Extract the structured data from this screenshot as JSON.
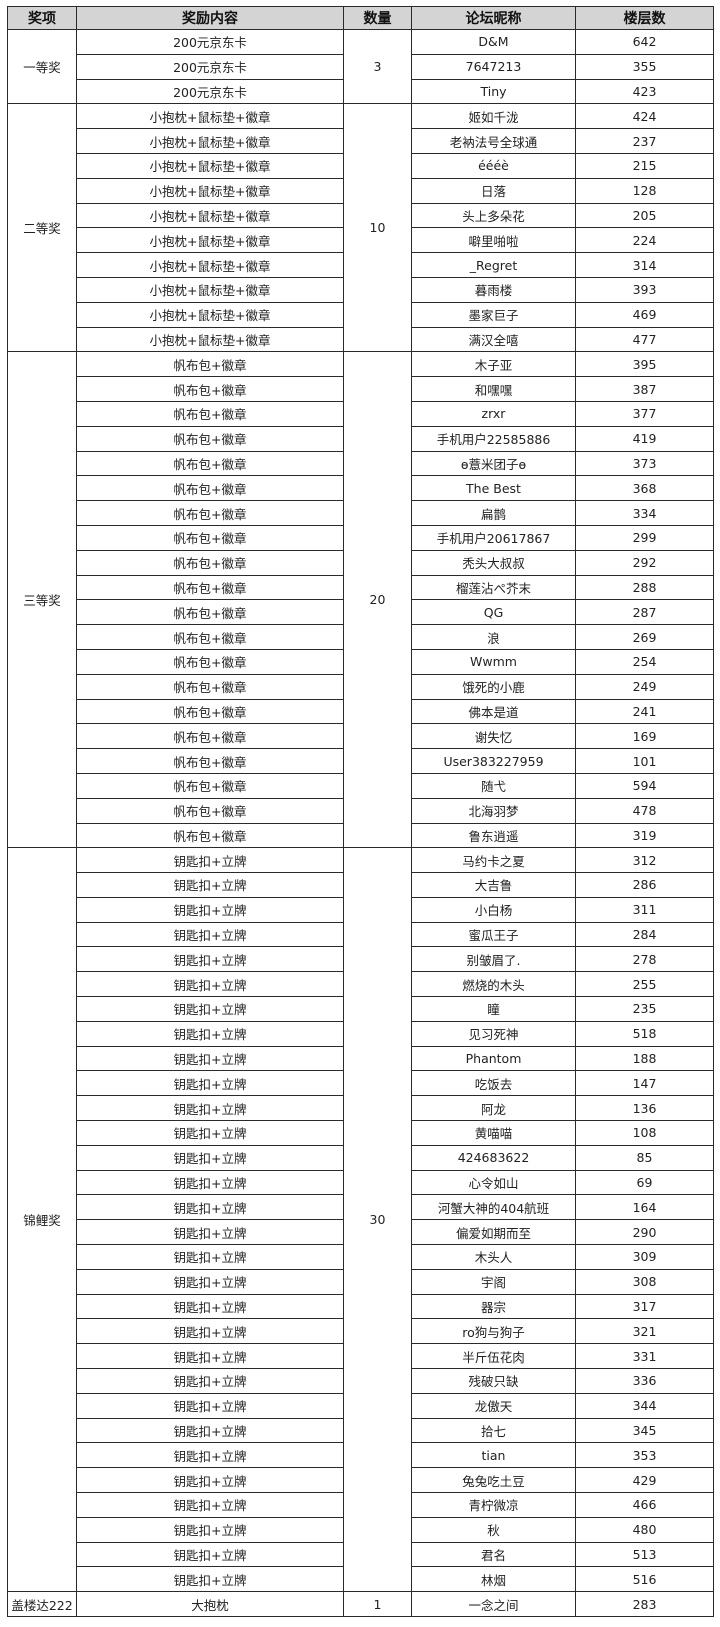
{
  "headers": [
    "奖项",
    "奖励内容",
    "数量",
    "论坛昵称",
    "楼层数"
  ],
  "colors": {
    "header_bg": "#d4d4d4",
    "border": "#2a2a2a"
  },
  "groups": [
    {
      "prize": "一等奖",
      "count": "3",
      "rows": [
        [
          "200元京东卡",
          "D&M",
          "642"
        ],
        [
          "200元京东卡",
          "7647213",
          "355"
        ],
        [
          "200元京东卡",
          "Tiny",
          "423"
        ]
      ]
    },
    {
      "prize": "二等奖",
      "count": "10",
      "rows": [
        [
          "小抱枕+鼠标垫+徽章",
          "姬如千泷",
          "424"
        ],
        [
          "小抱枕+鼠标垫+徽章",
          "老衲法号全球通",
          "237"
        ],
        [
          "小抱枕+鼠标垫+徽章",
          "éééè",
          "215"
        ],
        [
          "小抱枕+鼠标垫+徽章",
          "日落",
          "128"
        ],
        [
          "小抱枕+鼠标垫+徽章",
          "头上多朵花",
          "205"
        ],
        [
          "小抱枕+鼠标垫+徽章",
          "噼里啪啦",
          "224"
        ],
        [
          "小抱枕+鼠标垫+徽章",
          "_Regret",
          "314"
        ],
        [
          "小抱枕+鼠标垫+徽章",
          "暮雨楼",
          "393"
        ],
        [
          "小抱枕+鼠标垫+徽章",
          "墨家巨子",
          "469"
        ],
        [
          "小抱枕+鼠标垫+徽章",
          "满汉全嘻",
          "477"
        ]
      ]
    },
    {
      "prize": "三等奖",
      "count": "20",
      "rows": [
        [
          "帆布包+徽章",
          "木子亚",
          "395"
        ],
        [
          "帆布包+徽章",
          "和嘿嘿",
          "387"
        ],
        [
          "帆布包+徽章",
          "zrxr",
          "377"
        ],
        [
          "帆布包+徽章",
          "手机用户22585886",
          "419"
        ],
        [
          "帆布包+徽章",
          "ɵ薏米团子ɵ",
          "373"
        ],
        [
          "帆布包+徽章",
          "The Best",
          "368"
        ],
        [
          "帆布包+徽章",
          "扁鹊",
          "334"
        ],
        [
          "帆布包+徽章",
          "手机用户20617867",
          "299"
        ],
        [
          "帆布包+徽章",
          "秃头大叔叔",
          "292"
        ],
        [
          "帆布包+徽章",
          "榴莲沾ぺ芥末",
          "288"
        ],
        [
          "帆布包+徽章",
          "QG",
          "287"
        ],
        [
          "帆布包+徽章",
          "浪",
          "269"
        ],
        [
          "帆布包+徽章",
          "Wwmm",
          "254"
        ],
        [
          "帆布包+徽章",
          "饿死的小鹿",
          "249"
        ],
        [
          "帆布包+徽章",
          "佛本是道",
          "241"
        ],
        [
          "帆布包+徽章",
          "谢失忆",
          "169"
        ],
        [
          "帆布包+徽章",
          "User383227959",
          "101"
        ],
        [
          "帆布包+徽章",
          "随弋",
          "594"
        ],
        [
          "帆布包+徽章",
          "北海羽梦",
          "478"
        ],
        [
          "帆布包+徽章",
          "鲁东逍遥",
          "319"
        ]
      ]
    },
    {
      "prize": "锦鲤奖",
      "count": "30",
      "rows": [
        [
          "钥匙扣+立牌",
          "马约卡之夏",
          "312"
        ],
        [
          "钥匙扣+立牌",
          "大吉鲁",
          "286"
        ],
        [
          "钥匙扣+立牌",
          "小白杨",
          "311"
        ],
        [
          "钥匙扣+立牌",
          "蜜瓜王子",
          "284"
        ],
        [
          "钥匙扣+立牌",
          "别皱眉了.",
          "278"
        ],
        [
          "钥匙扣+立牌",
          "燃烧的木头",
          "255"
        ],
        [
          "钥匙扣+立牌",
          "瞳",
          "235"
        ],
        [
          "钥匙扣+立牌",
          "见习死神",
          "518"
        ],
        [
          "钥匙扣+立牌",
          "Phantom",
          "188"
        ],
        [
          "钥匙扣+立牌",
          "吃饭去",
          "147"
        ],
        [
          "钥匙扣+立牌",
          "阿龙",
          "136"
        ],
        [
          "钥匙扣+立牌",
          "黄喵喵",
          "108"
        ],
        [
          "钥匙扣+立牌",
          "424683622",
          "85"
        ],
        [
          "钥匙扣+立牌",
          "心令如山",
          "69"
        ],
        [
          "钥匙扣+立牌",
          "河蟹大神的404航班",
          "164"
        ],
        [
          "钥匙扣+立牌",
          "偏爱如期而至",
          "290"
        ],
        [
          "钥匙扣+立牌",
          "木头人",
          "309"
        ],
        [
          "钥匙扣+立牌",
          "宇阁",
          "308"
        ],
        [
          "钥匙扣+立牌",
          "器宗",
          "317"
        ],
        [
          "钥匙扣+立牌",
          "ro狗与狗子",
          "321"
        ],
        [
          "钥匙扣+立牌",
          "半斤伍花肉",
          "331"
        ],
        [
          "钥匙扣+立牌",
          "残破只缺",
          "336"
        ],
        [
          "钥匙扣+立牌",
          "龙傲天",
          "344"
        ],
        [
          "钥匙扣+立牌",
          "拾七",
          "345"
        ],
        [
          "钥匙扣+立牌",
          "tian",
          "353"
        ],
        [
          "钥匙扣+立牌",
          "兔兔吃土豆",
          "429"
        ],
        [
          "钥匙扣+立牌",
          "青柠微凉",
          "466"
        ],
        [
          "钥匙扣+立牌",
          "秋",
          "480"
        ],
        [
          "钥匙扣+立牌",
          "君名",
          "513"
        ],
        [
          "钥匙扣+立牌",
          "林烟",
          "516"
        ]
      ]
    },
    {
      "prize": "盖楼达222",
      "count": "1",
      "rows": [
        [
          "大抱枕",
          "一念之间",
          "283"
        ]
      ]
    }
  ]
}
